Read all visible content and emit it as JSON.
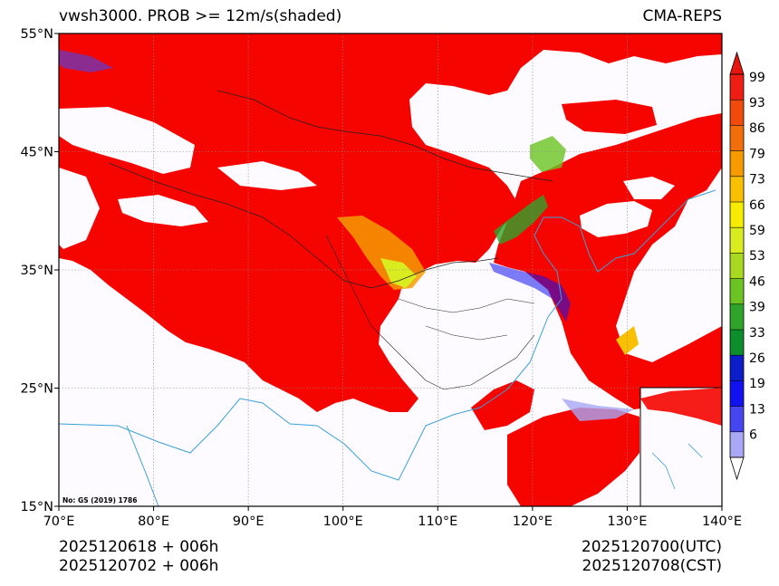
{
  "title_left": "vwsh3000. PROB >= 12m/s(shaded)",
  "title_right": "CMA-REPS",
  "lat_labels": [
    "55°N",
    "45°N",
    "35°N",
    "25°N",
    "15°N"
  ],
  "lon_labels": [
    "70°E",
    "80°E",
    "90°E",
    "100°E",
    "110°E",
    "120°E",
    "130°E",
    "140°E"
  ],
  "colorbar": {
    "labels": [
      "99",
      "93",
      "86",
      "79",
      "73",
      "66",
      "59",
      "53",
      "46",
      "39",
      "33",
      "26",
      "19",
      "13",
      "6"
    ],
    "colors": [
      "#ee1e14",
      "#f04a0c",
      "#f26e0a",
      "#f59b00",
      "#f8c000",
      "#f6ec00",
      "#d8ec20",
      "#a8d820",
      "#6cc422",
      "#2ea52a",
      "#0c8e2c",
      "#0c1ec8",
      "#1212f0",
      "#4646f0",
      "#a8a8f4"
    ]
  },
  "footer": {
    "init_date_utc": "2025120618  +  006h",
    "init_date_cst": "2025120702  +  006h",
    "valid_utc": "2025120700(UTC)",
    "valid_cst": "2025120708(CST)"
  },
  "map_note": "No: GS (2019) 1786",
  "colors": {
    "field": "#f50400",
    "background": "#fdfbff",
    "coast": "#3aa0d8",
    "border": "#222222"
  }
}
